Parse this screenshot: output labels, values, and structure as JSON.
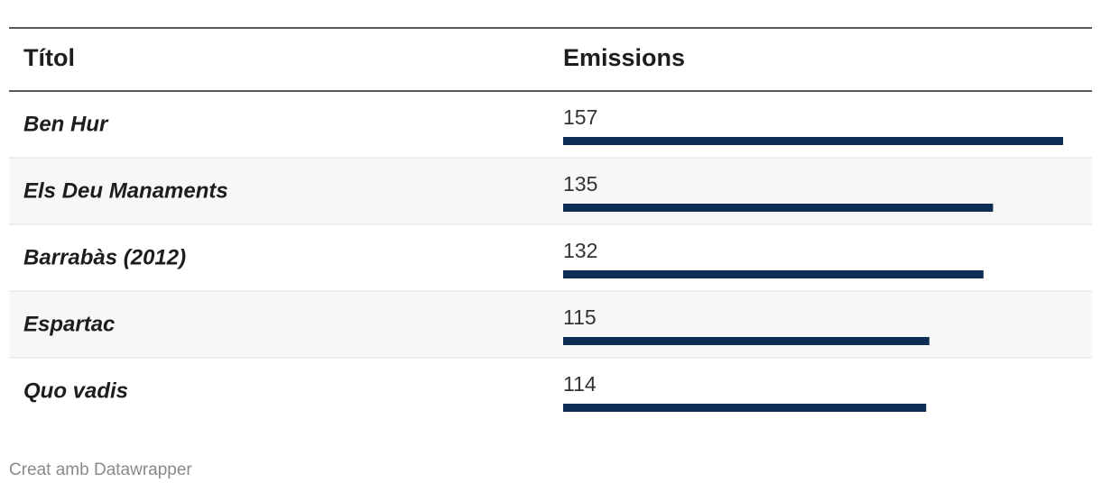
{
  "chart_data": {
    "type": "bar",
    "columns": [
      "Títol",
      "Emissions"
    ],
    "categories": [
      "Ben Hur",
      "Els Deu Manaments",
      "Barrabàs (2012)",
      "Espartac",
      "Quo vadis"
    ],
    "values": [
      157,
      135,
      132,
      115,
      114
    ],
    "color": "#0d2e54",
    "footer": "Creat amb Datawrapper"
  }
}
